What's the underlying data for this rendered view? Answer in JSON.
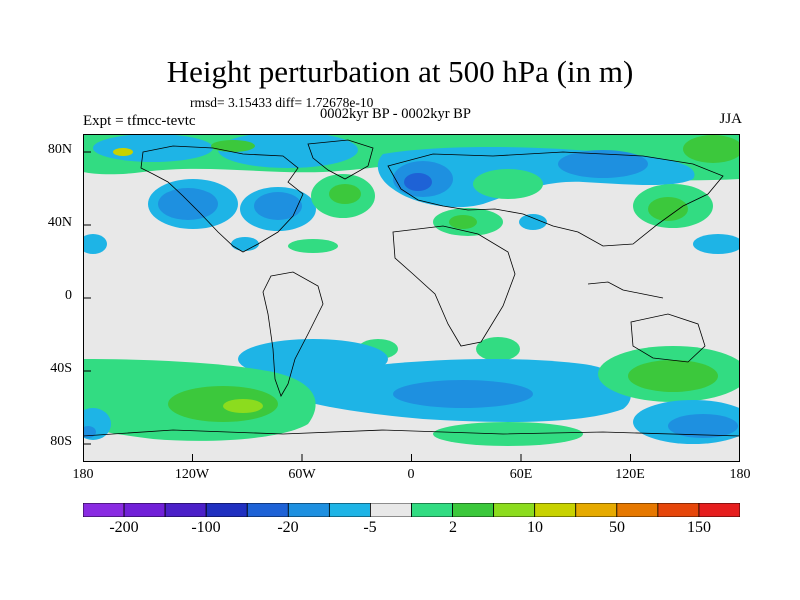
{
  "title": "Height perturbation at 500 hPa (in m)",
  "subtitle_stats": "rmsd= 3.15433 diff= 1.72678e-10",
  "subtitle_period": "0002kyr BP - 0002kyr BP",
  "left_label": "Expt = tfmcc-tevtc",
  "right_label": "JJA",
  "latitude_labels": [
    "80N",
    "40N",
    "0",
    "40S",
    "80S"
  ],
  "longitude_labels": [
    "180",
    "120W",
    "60W",
    "0",
    "60E",
    "120E",
    "180"
  ],
  "colorbar": {
    "colors": [
      "#8a2be2",
      "#7120d8",
      "#4b20c8",
      "#2030c0",
      "#1e62d6",
      "#1e90e0",
      "#1eb4e6",
      "#e8e8e8",
      "#32dc82",
      "#3cc83c",
      "#8cdc1e",
      "#c8d200",
      "#e6aa00",
      "#e67800",
      "#e6460a",
      "#e61e1e"
    ],
    "tick_labels": [
      "-200",
      "-100",
      "-20",
      "-5",
      "2",
      "10",
      "50",
      "150"
    ]
  },
  "palette": {
    "neutral": "#e8e8e8",
    "neg_light": "#1eb4e6",
    "neg_mid": "#1e90e0",
    "neg_strong": "#1e62d6",
    "pos_light": "#32dc82",
    "pos_mid": "#3cc83c",
    "pos_strong": "#8cdc1e",
    "pos_peak": "#c8d200"
  }
}
